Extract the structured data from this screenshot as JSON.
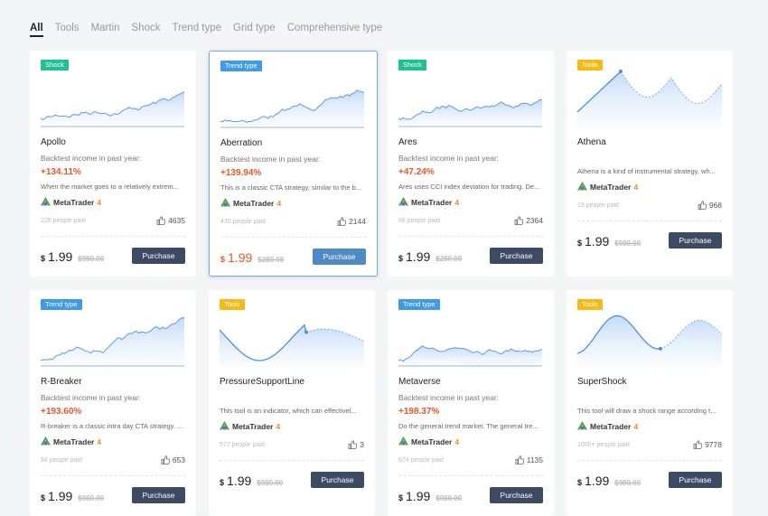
{
  "tabs": [
    "All",
    "Tools",
    "Martin",
    "Shock",
    "Trend type",
    "Grid type",
    "Comprehensive type"
  ],
  "cards": [
    {
      "tag": "Shock",
      "name": "Apollo",
      "income_label": "Backtest income in past year:",
      "income": "+134.11%",
      "description": "When the market goes to a relatively extrem...",
      "platform": "MetaTrader",
      "platform_version": "4",
      "paid": "226 people paid",
      "likes": "4635",
      "currency": "$",
      "price": "1.99",
      "original_price": "$980.00",
      "button": "Purchase"
    },
    {
      "tag": "Trend type",
      "name": "Aberration",
      "income_label": "Backtest income in past year:",
      "income": "+139.94%",
      "description": "This is a classic CTA strategy, similar to the b...",
      "platform": "MetaTrader",
      "platform_version": "4",
      "paid": "430 people paid",
      "likes": "2144",
      "currency": "$",
      "price": "1.99",
      "original_price": "$280.00",
      "button": "Purchase"
    },
    {
      "tag": "Shock",
      "name": "Ares",
      "income_label": "Backtest income in past year:",
      "income": "+47.24%",
      "description": "Ares uses CCI index deviation for trading. De...",
      "platform": "MetaTrader",
      "platform_version": "4",
      "paid": "68 people paid",
      "likes": "2364",
      "currency": "$",
      "price": "1.99",
      "original_price": "$280.00",
      "button": "Purchase"
    },
    {
      "tag": "Tools",
      "name": "Athena",
      "description": "Athena is a kind of instrumental strategy, wh...",
      "platform": "MetaTrader",
      "platform_version": "4",
      "paid": "19 people paid",
      "likes": "968",
      "currency": "$",
      "price": "1.99",
      "original_price": "$980.00",
      "button": "Purchase"
    },
    {
      "tag": "Trend type",
      "name": "R-Breaker",
      "income_label": "Backtest income in past year:",
      "income": "+193.60%",
      "description": "R-breaker is a classic intra day CTA strategy. ...",
      "platform": "MetaTrader",
      "platform_version": "4",
      "paid": "64 people paid",
      "likes": "653",
      "currency": "$",
      "price": "1.99",
      "original_price": "$980.00",
      "button": "Purchase"
    },
    {
      "tag": "Tools",
      "name": "PressureSupportLine",
      "description": "This tool is an indicator, which can effectivel...",
      "platform": "MetaTrader",
      "platform_version": "4",
      "paid": "577 people paid",
      "likes": "3",
      "currency": "$",
      "price": "1.99",
      "original_price": "$980.00",
      "button": "Purchase"
    },
    {
      "tag": "Trend type",
      "name": "Metaverse",
      "income_label": "Backtest income in past year:",
      "income": "+198.37%",
      "description": "Do the general trend market. The general tre...",
      "platform": "MetaTrader",
      "platform_version": "4",
      "paid": "674 people paid",
      "likes": "1135",
      "currency": "$",
      "price": "1.99",
      "original_price": "$980.00",
      "button": "Purchase"
    },
    {
      "tag": "Tools",
      "name": "SuperShock",
      "description": "This tool will draw a shock range according t...",
      "platform": "MetaTrader",
      "platform_version": "4",
      "paid": "1000+ people paid",
      "likes": "9778",
      "currency": "$",
      "price": "1.99",
      "original_price": "$980.00",
      "button": "Purchase"
    }
  ]
}
